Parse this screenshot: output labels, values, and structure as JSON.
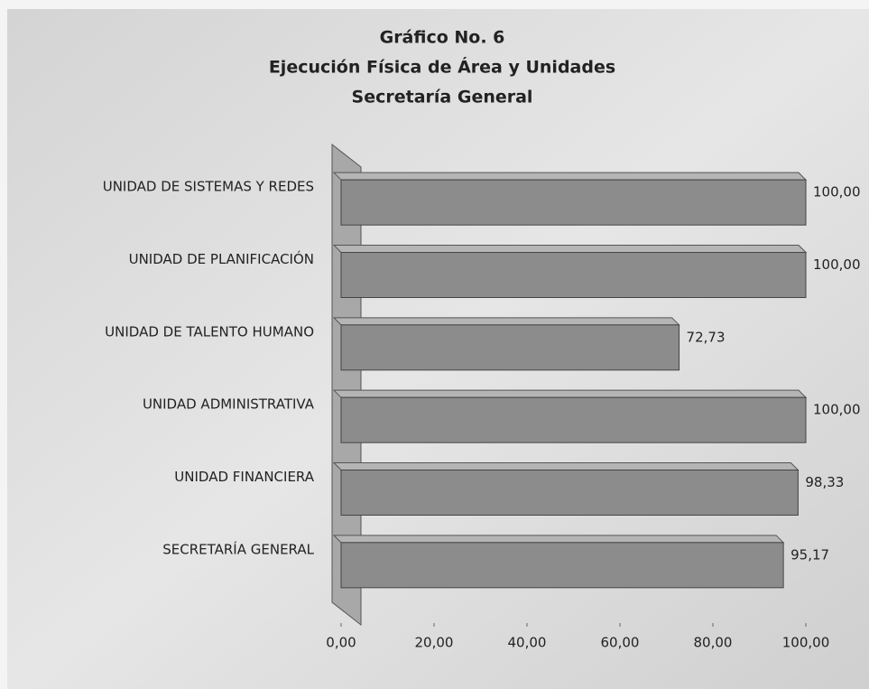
{
  "chart_data": {
    "type": "bar",
    "orientation": "horizontal",
    "title": [
      "Gráfico No. 6",
      "Ejecución Física de Área y Unidades",
      "Secretaría General"
    ],
    "categories": [
      "UNIDAD DE SISTEMAS Y REDES",
      "UNIDAD DE PLANIFICACIÓN",
      "UNIDAD DE TALENTO HUMANO",
      "UNIDAD ADMINISTRATIVA",
      "UNIDAD FINANCIERA",
      "SECRETARÍA GENERAL"
    ],
    "values": [
      100,
      100,
      72.73,
      100,
      98.33,
      95.17
    ],
    "value_labels": [
      "100,00",
      "100,00",
      "72,73",
      "100,00",
      "98,33",
      "95,17"
    ],
    "color": "#8c8c8c",
    "xlim": [
      0,
      100
    ],
    "xticks": [
      {
        "value": 0,
        "label": "0,00"
      },
      {
        "value": 20,
        "label": "20,00"
      },
      {
        "value": 40,
        "label": "40,00"
      },
      {
        "value": 60,
        "label": "60,00"
      },
      {
        "value": 80,
        "label": "80,00"
      },
      {
        "value": 100,
        "label": "100,00"
      }
    ],
    "grid": false
  }
}
